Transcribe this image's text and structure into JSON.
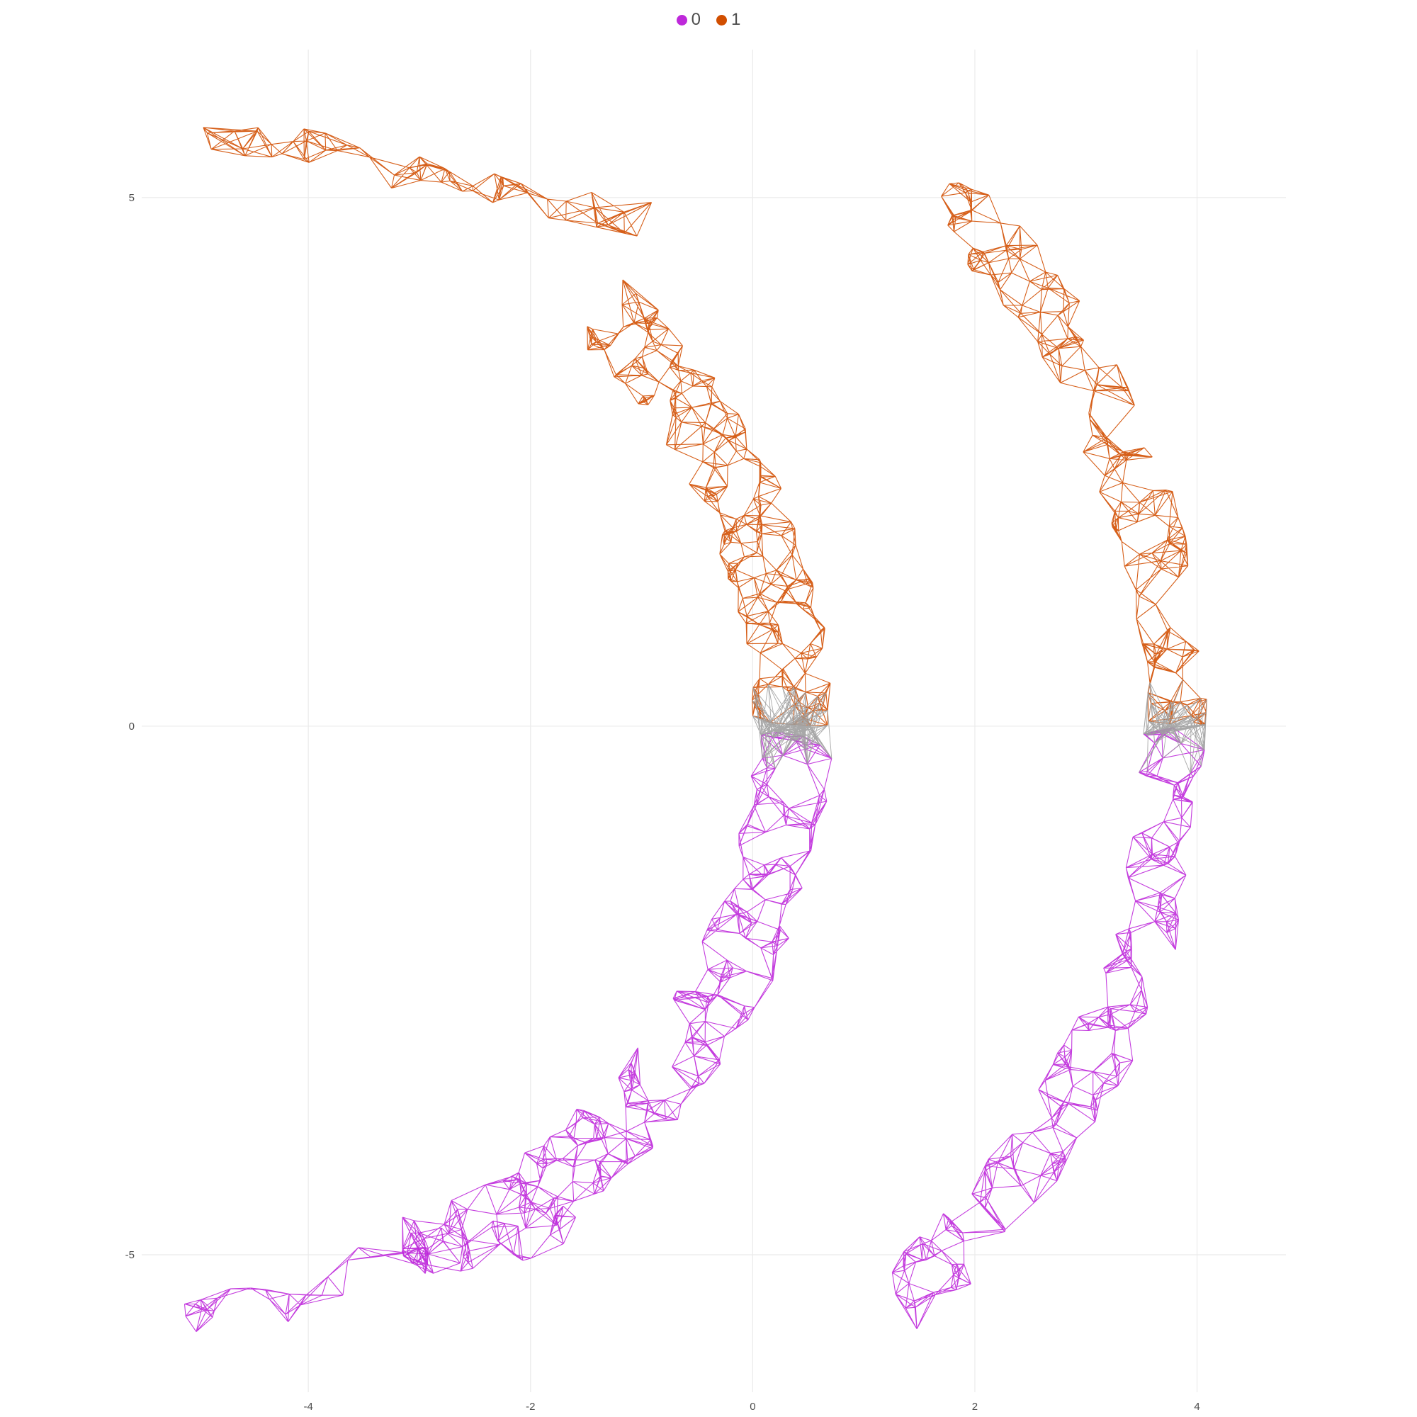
{
  "chart_data": {
    "type": "graph-network-scatter",
    "title": "",
    "xlabel": "",
    "ylabel": "",
    "xlim": [
      -5.5,
      4.8
    ],
    "ylim": [
      -6.3,
      6.4
    ],
    "grid": true,
    "legend_position": "top",
    "x_ticks": [
      -4,
      -2,
      0,
      2,
      4
    ],
    "y_ticks": [
      -5,
      0,
      5
    ],
    "x_tick_labels": [
      "-4",
      "-2",
      "0",
      "2",
      "4"
    ],
    "y_tick_labels": [
      "-5",
      "0",
      "5"
    ],
    "series": [
      {
        "name": "0",
        "color": "#BE28DA",
        "arcs": [
          {
            "cx": -5.0,
            "cy": 0.0,
            "r": 5.35,
            "start_deg": 0,
            "end_deg": -70,
            "width": 0.75,
            "points": 240,
            "neighbors": 6
          },
          {
            "cx": -3.4,
            "cy": 0.0,
            "r": 7.2,
            "start_deg": 0,
            "end_deg": -50,
            "width": 0.65,
            "points": 180,
            "neighbors": 6
          }
        ],
        "fragment": {
          "x": [
            -5.2,
            -4.8,
            -4.3,
            -3.8,
            -3.3,
            -2.8,
            -2.3,
            -1.9,
            -1.65
          ],
          "y": [
            -5.65,
            -5.35,
            -5.5,
            -5.2,
            -5.05,
            -4.95,
            -4.9,
            -4.8,
            -4.65
          ],
          "width": 0.45,
          "points": 55,
          "neighbors": 5
        }
      },
      {
        "name": "1",
        "color": "#D14E00",
        "arcs": [
          {
            "cx": -5.0,
            "cy": 0.0,
            "r": 5.35,
            "start_deg": 0,
            "end_deg": 48,
            "width": 0.75,
            "points": 240,
            "neighbors": 6
          },
          {
            "cx": -3.4,
            "cy": 0.0,
            "r": 7.2,
            "start_deg": 0,
            "end_deg": 45,
            "width": 0.65,
            "points": 170,
            "neighbors": 6
          }
        ],
        "fragment": {
          "x": [
            -5.0,
            -4.4,
            -3.8,
            -3.2,
            -2.6,
            -2.0,
            -1.4,
            -0.8
          ],
          "y": [
            5.5,
            5.55,
            5.45,
            5.25,
            5.1,
            5.0,
            4.9,
            4.75
          ],
          "width": 0.4,
          "points": 60,
          "neighbors": 6
        }
      }
    ],
    "cross_edges_color": "#9E9E9E"
  }
}
